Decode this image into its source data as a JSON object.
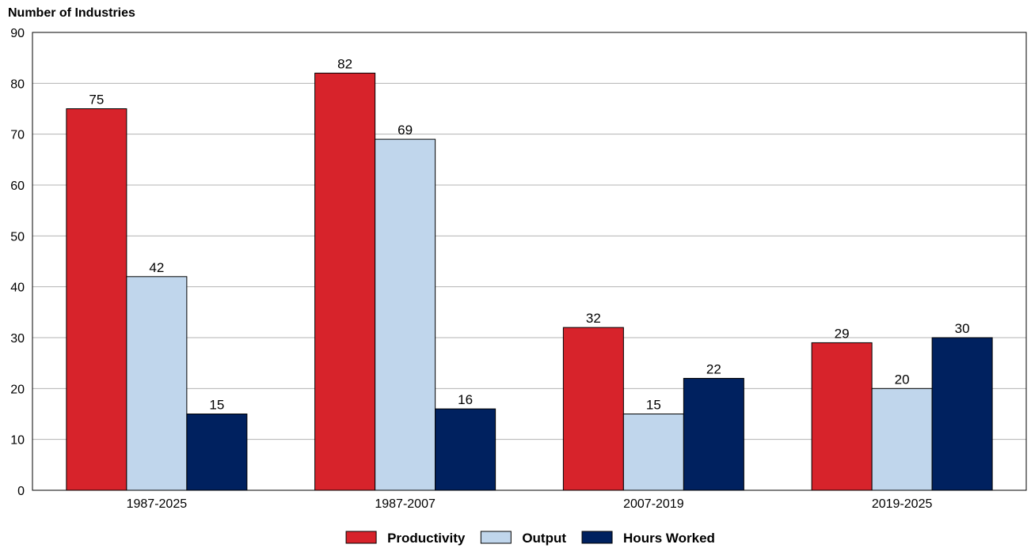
{
  "chart_data": {
    "type": "bar",
    "ylabel": "Number of Industries",
    "ylim": [
      0,
      90
    ],
    "yticks": [
      0,
      10,
      20,
      30,
      40,
      50,
      60,
      70,
      80,
      90
    ],
    "grid": "horizontal",
    "legend_placement": "bottom-center",
    "categories": [
      "1987-2025",
      "1987-2007",
      "2007-2019",
      "2019-2025"
    ],
    "series": [
      {
        "name": "Productivity",
        "color": "#d7232b",
        "values": [
          75,
          82,
          32,
          29
        ]
      },
      {
        "name": "Output",
        "color": "#c0d6ec",
        "values": [
          42,
          69,
          15,
          20
        ]
      },
      {
        "name": "Hours Worked",
        "color": "#00215f",
        "values": [
          15,
          16,
          22,
          30
        ]
      }
    ]
  }
}
